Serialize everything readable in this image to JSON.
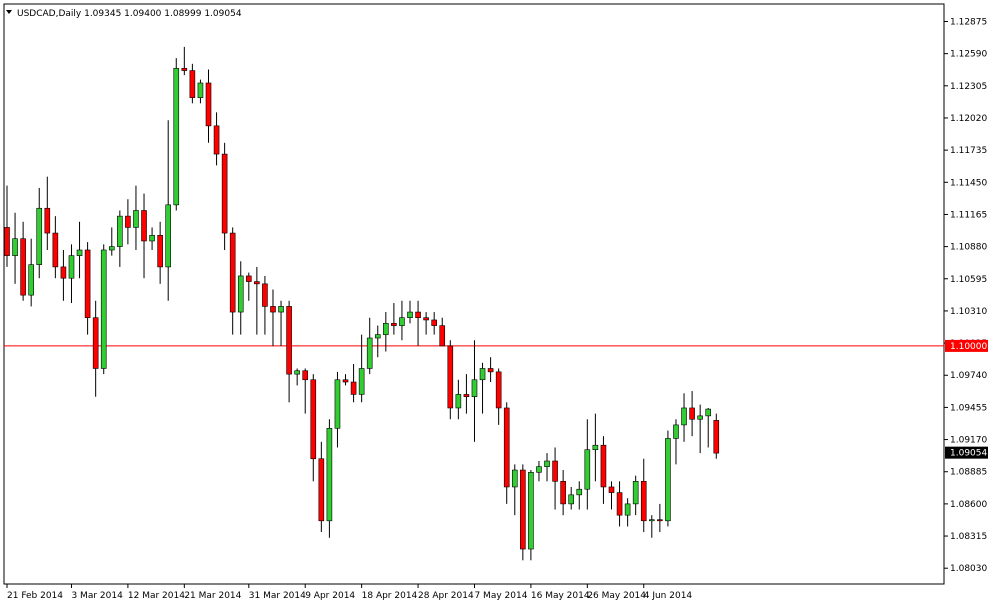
{
  "header": {
    "symbol_line": "USDCAD,Daily  1.09345 1.09400 1.08999 1.09054"
  },
  "chart_data": {
    "type": "candlestick",
    "symbol": "USDCAD",
    "timeframe": "Daily",
    "ylim": [
      1.0789,
      1.1303
    ],
    "y_ticks": [
      "1.12875",
      "1.12590",
      "1.12305",
      "1.12020",
      "1.11735",
      "1.11450",
      "1.11165",
      "1.10880",
      "1.10595",
      "1.10310",
      "1.10025",
      "1.09740",
      "1.09455",
      "1.09170",
      "1.08885",
      "1.08600",
      "1.08315",
      "1.08030"
    ],
    "x_ticks": [
      {
        "label": "21 Feb 2014",
        "index": 0
      },
      {
        "label": "3 Mar 2014",
        "index": 8
      },
      {
        "label": "12 Mar 2014",
        "index": 15
      },
      {
        "label": "21 Mar 2014",
        "index": 22
      },
      {
        "label": "31 Mar 2014",
        "index": 30
      },
      {
        "label": "9 Apr 2014",
        "index": 37
      },
      {
        "label": "18 Apr 2014",
        "index": 44
      },
      {
        "label": "28 Apr 2014",
        "index": 51
      },
      {
        "label": "7 May 2014",
        "index": 58
      },
      {
        "label": "16 May 2014",
        "index": 65
      },
      {
        "label": "26 May 2014",
        "index": 72
      },
      {
        "label": "4 Jun 2014",
        "index": 79
      }
    ],
    "horizontal_line": {
      "value": "1.10000",
      "color": "#ff0000"
    },
    "current_price": "1.09054",
    "colors": {
      "bull": "#32cd32",
      "bear": "#ff0000",
      "wick": "#000000",
      "background": "#ffffff"
    },
    "grid": false,
    "ohlc": [
      [
        1.1105,
        1.1142,
        1.107,
        1.108
      ],
      [
        1.108,
        1.1118,
        1.1055,
        1.1095
      ],
      [
        1.1095,
        1.111,
        1.104,
        1.1045
      ],
      [
        1.1045,
        1.1095,
        1.1035,
        1.1072
      ],
      [
        1.1072,
        1.114,
        1.106,
        1.1122
      ],
      [
        1.1122,
        1.115,
        1.1085,
        1.11
      ],
      [
        1.11,
        1.1115,
        1.106,
        1.107
      ],
      [
        1.107,
        1.1085,
        1.104,
        1.106
      ],
      [
        1.106,
        1.109,
        1.1038,
        1.108
      ],
      [
        1.108,
        1.111,
        1.106,
        1.1085
      ],
      [
        1.1085,
        1.1092,
        1.101,
        1.1025
      ],
      [
        1.1025,
        1.104,
        1.0955,
        1.098
      ],
      [
        1.098,
        1.109,
        1.0975,
        1.1085
      ],
      [
        1.1085,
        1.1105,
        1.108,
        1.1088
      ],
      [
        1.1088,
        1.112,
        1.107,
        1.1115
      ],
      [
        1.1115,
        1.113,
        1.109,
        1.1105
      ],
      [
        1.1105,
        1.1142,
        1.1085,
        1.112
      ],
      [
        1.112,
        1.1135,
        1.106,
        1.1093
      ],
      [
        1.1093,
        1.1105,
        1.1085,
        1.1098
      ],
      [
        1.1098,
        1.111,
        1.1055,
        1.107
      ],
      [
        1.107,
        1.12,
        1.104,
        1.1125
      ],
      [
        1.1125,
        1.1255,
        1.112,
        1.1246
      ],
      [
        1.1246,
        1.1265,
        1.124,
        1.1244
      ],
      [
        1.1244,
        1.125,
        1.1215,
        1.122
      ],
      [
        1.122,
        1.1236,
        1.1215,
        1.1233
      ],
      [
        1.1233,
        1.1245,
        1.118,
        1.1195
      ],
      [
        1.1195,
        1.1207,
        1.116,
        1.117
      ],
      [
        1.117,
        1.118,
        1.1085,
        1.11
      ],
      [
        1.11,
        1.1105,
        1.101,
        1.103
      ],
      [
        1.103,
        1.1075,
        1.101,
        1.1062
      ],
      [
        1.1062,
        1.1065,
        1.104,
        1.1057
      ],
      [
        1.1057,
        1.107,
        1.101,
        1.1055
      ],
      [
        1.1055,
        1.1062,
        1.101,
        1.1035
      ],
      [
        1.1035,
        1.105,
        1.1,
        1.103
      ],
      [
        1.103,
        1.104,
        1.1,
        1.1035
      ],
      [
        1.1035,
        1.104,
        1.095,
        1.0975
      ],
      [
        1.0975,
        1.098,
        1.0965,
        1.0978
      ],
      [
        1.0978,
        1.098,
        1.094,
        1.097
      ],
      [
        1.097,
        1.0975,
        1.088,
        1.09
      ],
      [
        1.09,
        1.0915,
        1.0835,
        1.0845
      ],
      [
        1.0845,
        1.0935,
        1.083,
        1.0927
      ],
      [
        1.0927,
        1.0977,
        1.091,
        1.097
      ],
      [
        1.097,
        1.0975,
        1.0965,
        1.0968
      ],
      [
        1.0968,
        1.0984,
        1.095,
        1.0957
      ],
      [
        1.0957,
        1.101,
        1.095,
        1.098
      ],
      [
        1.098,
        1.1025,
        1.0975,
        1.1007
      ],
      [
        1.1007,
        1.1018,
        1.099,
        1.101
      ],
      [
        1.101,
        1.103,
        1.0995,
        1.102
      ],
      [
        1.102,
        1.1038,
        1.101,
        1.1018
      ],
      [
        1.1018,
        1.104,
        1.1005,
        1.1025
      ],
      [
        1.1025,
        1.104,
        1.102,
        1.103
      ],
      [
        1.103,
        1.104,
        1.1,
        1.1025
      ],
      [
        1.1025,
        1.103,
        1.101,
        1.1023
      ],
      [
        1.1023,
        1.103,
        1.101,
        1.1018
      ],
      [
        1.1018,
        1.1025,
        1.1,
        1.1
      ],
      [
        1.1,
        1.1005,
        1.0935,
        1.0945
      ],
      [
        1.0945,
        1.097,
        1.0935,
        1.0957
      ],
      [
        1.0957,
        1.0975,
        1.094,
        1.0955
      ],
      [
        1.0955,
        1.1005,
        1.0915,
        1.097
      ],
      [
        1.097,
        1.0985,
        1.094,
        1.098
      ],
      [
        1.098,
        1.099,
        1.0968,
        1.0977
      ],
      [
        1.0977,
        1.098,
        1.093,
        1.0945
      ],
      [
        1.0945,
        1.095,
        1.086,
        1.0875
      ],
      [
        1.0875,
        1.0895,
        1.085,
        1.089
      ],
      [
        1.089,
        1.0895,
        1.081,
        1.082
      ],
      [
        1.082,
        1.089,
        1.081,
        1.0888
      ],
      [
        1.0888,
        1.0898,
        1.088,
        1.0893
      ],
      [
        1.0893,
        1.0905,
        1.088,
        1.0898
      ],
      [
        1.0898,
        1.091,
        1.0855,
        1.088
      ],
      [
        1.088,
        1.089,
        1.085,
        1.086
      ],
      [
        1.086,
        1.0875,
        1.0855,
        1.0868
      ],
      [
        1.0868,
        1.088,
        1.0855,
        1.0873
      ],
      [
        1.0873,
        1.0935,
        1.0855,
        1.0908
      ],
      [
        1.0908,
        1.094,
        1.088,
        1.0912
      ],
      [
        1.0912,
        1.092,
        1.086,
        1.0875
      ],
      [
        1.0875,
        1.088,
        1.0855,
        1.087
      ],
      [
        1.087,
        1.088,
        1.084,
        1.085
      ],
      [
        1.085,
        1.0865,
        1.084,
        1.086
      ],
      [
        1.086,
        1.0885,
        1.085,
        1.088
      ],
      [
        1.088,
        1.09,
        1.0835,
        1.0845
      ],
      [
        1.0845,
        1.085,
        1.083,
        1.0846
      ],
      [
        1.0846,
        1.086,
        1.0835,
        1.0845
      ],
      [
        1.0845,
        1.0925,
        1.084,
        1.0918
      ],
      [
        1.0918,
        1.0935,
        1.0895,
        1.093
      ],
      [
        1.093,
        1.0958,
        1.0915,
        1.0945
      ],
      [
        1.0945,
        1.096,
        1.092,
        1.0935
      ],
      [
        1.0935,
        1.0948,
        1.0905,
        1.0938
      ],
      [
        1.0938,
        1.0945,
        1.091,
        1.0944
      ],
      [
        1.0934,
        1.094,
        1.09,
        1.0905
      ]
    ]
  }
}
